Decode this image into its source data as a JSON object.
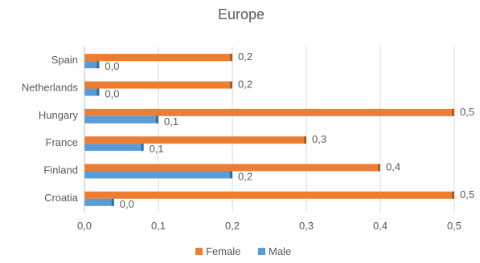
{
  "chart_data": {
    "type": "bar",
    "orientation": "horizontal",
    "title": "Europe",
    "categories": [
      "Spain",
      "Netherlands",
      "Hungary",
      "France",
      "Finland",
      "Croatia"
    ],
    "x_tick_labels": [
      "0,0",
      "0,1",
      "0,2",
      "0,3",
      "0,4",
      "0,5"
    ],
    "xlim": [
      0,
      0.5
    ],
    "series": [
      {
        "name": "Female",
        "color": "#ED7D31",
        "values": [
          0.2,
          0.2,
          0.5,
          0.3,
          0.4,
          0.5
        ],
        "labels": [
          "0,2",
          "0,2",
          "0,5",
          "0,3",
          "0,4",
          "0,5"
        ]
      },
      {
        "name": "Male",
        "color": "#5B9BD5",
        "values": [
          0.02,
          0.02,
          0.1,
          0.08,
          0.2,
          0.04
        ],
        "labels": [
          "0,0",
          "0,0",
          "0,1",
          "0,1",
          "0,2",
          "0,0"
        ]
      }
    ],
    "legend_position": "bottom",
    "grid": true
  }
}
